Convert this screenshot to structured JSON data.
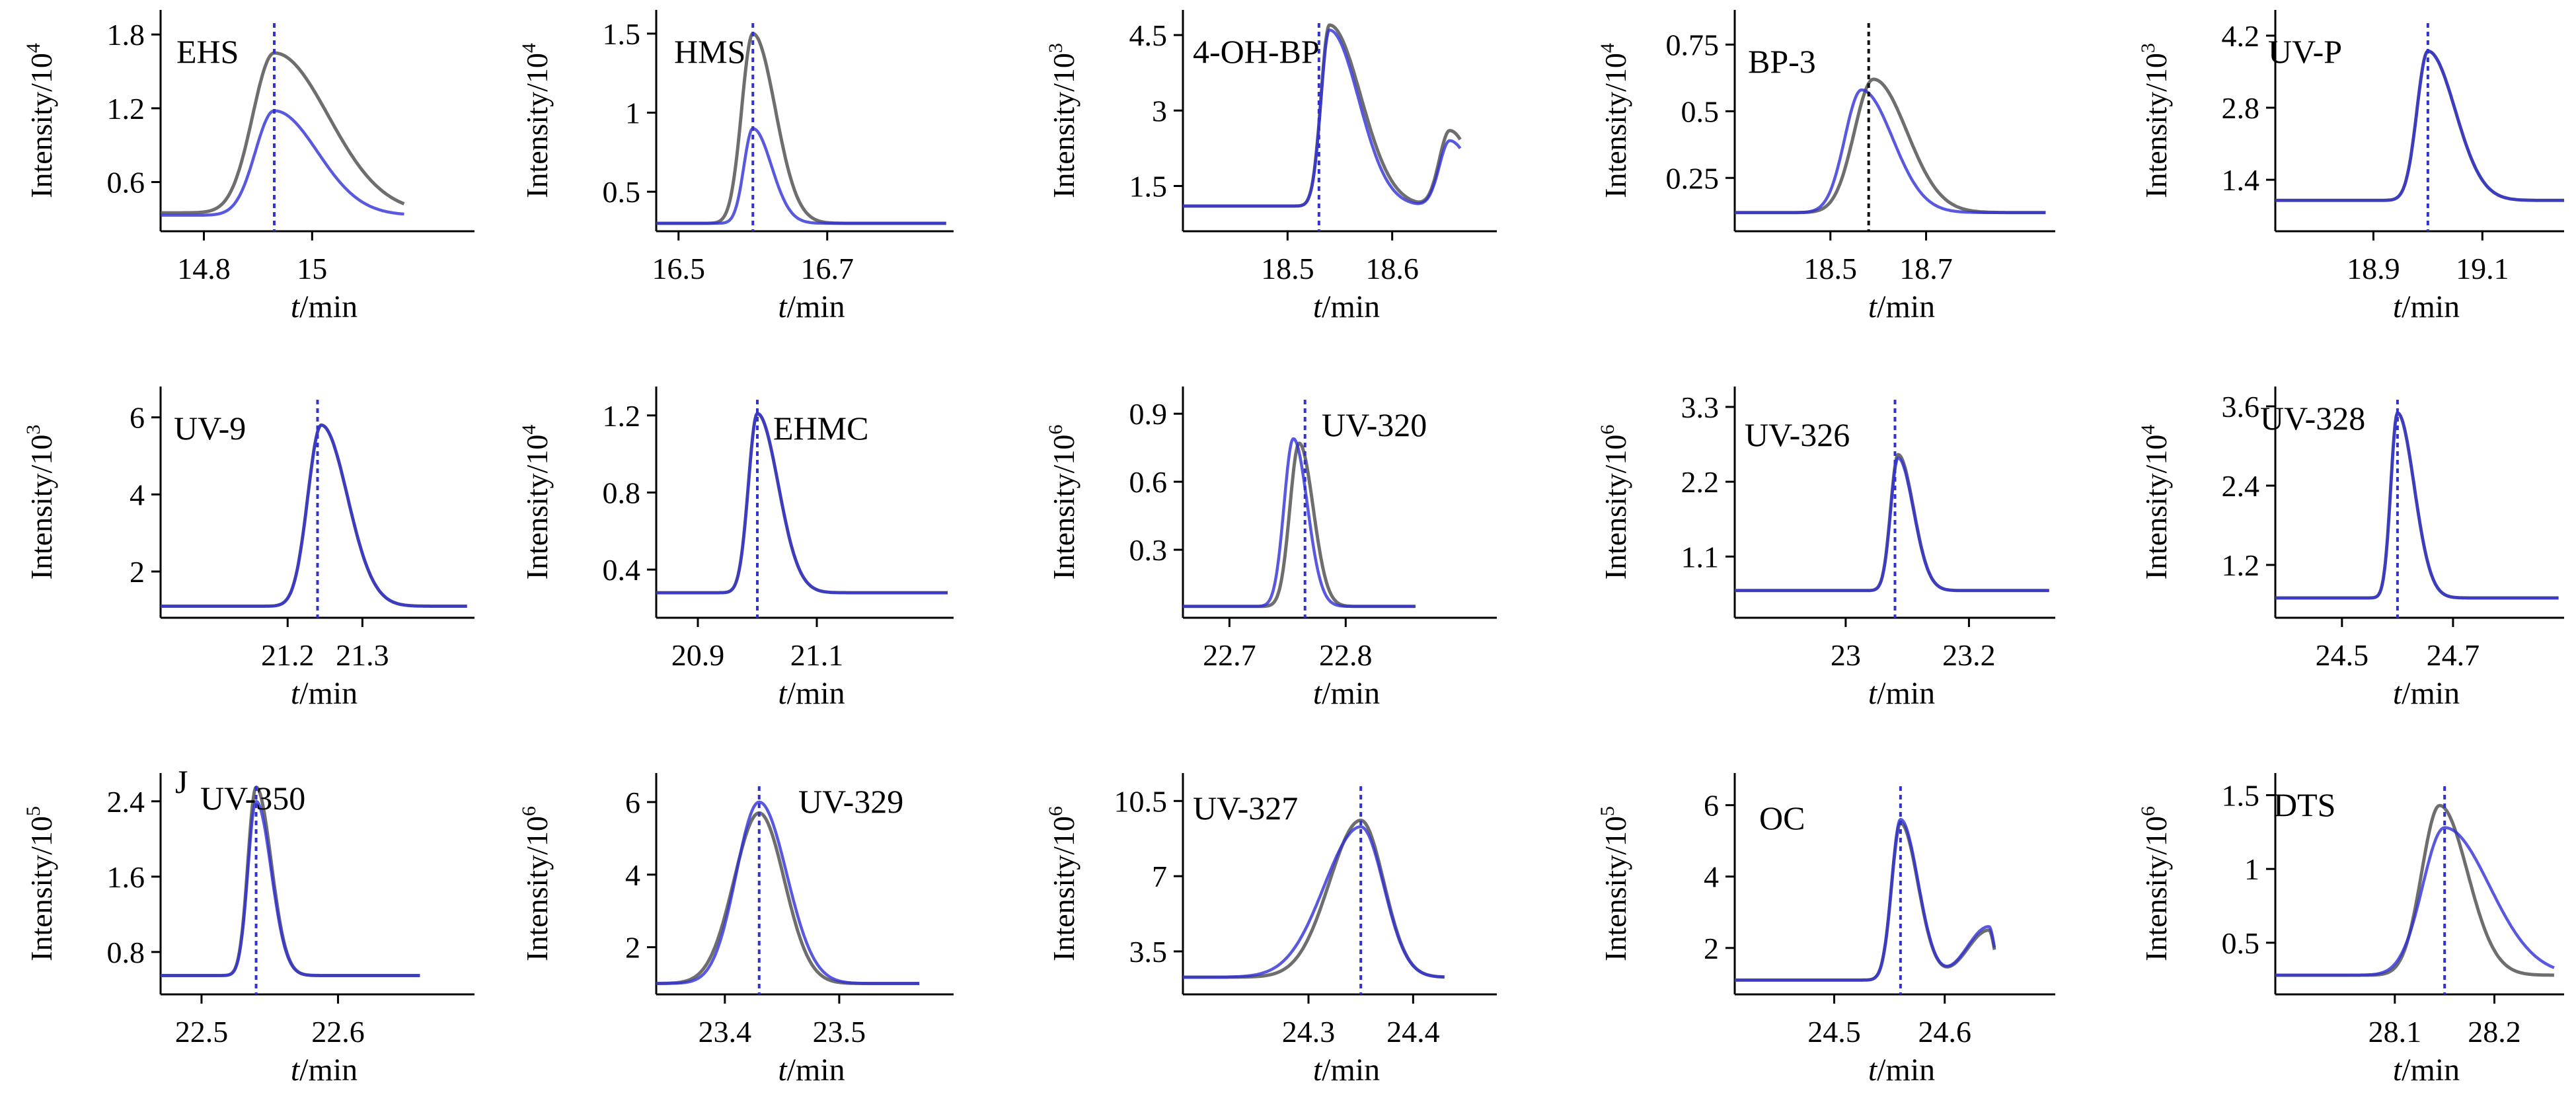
{
  "figure": {
    "xlabel_var": "t",
    "xlabel_unit": "/min",
    "ylabel_text": "Intensity/10"
  },
  "colors": {
    "black_trace": "#555555",
    "blue_trace": "#2f2fd8",
    "black_dash": "#111111",
    "blue_dash": "#3333cc",
    "axis": "#000000"
  },
  "chart_data": [
    {
      "type": "line",
      "title": "EHS",
      "exponent": "4",
      "yticks": [
        0.6,
        1.2,
        1.8
      ],
      "ylim": [
        0.2,
        2.0
      ],
      "xticks": [
        14.8,
        15
      ],
      "xlim": [
        14.72,
        15.3
      ],
      "rt": 14.93,
      "dash": "blue",
      "series": [
        {
          "name": "black",
          "base": 0.35,
          "peaks": [
            {
              "c": 14.93,
              "h": 1.3,
              "wl": 0.04,
              "wr": 0.1
            }
          ],
          "x_end": 15.17
        },
        {
          "name": "blue",
          "base": 0.33,
          "peaks": [
            {
              "c": 14.93,
              "h": 0.85,
              "wl": 0.035,
              "wr": 0.08
            }
          ],
          "x_end": 15.17
        }
      ]
    },
    {
      "type": "line",
      "title": "HMS",
      "exponent": "4",
      "yticks": [
        0.5,
        1.0,
        1.5
      ],
      "ylim": [
        0.25,
        1.65
      ],
      "xticks": [
        16.5,
        16.7
      ],
      "xlim": [
        16.47,
        16.87
      ],
      "rt": 16.6,
      "dash": "blue",
      "series": [
        {
          "name": "black",
          "base": 0.3,
          "peaks": [
            {
              "c": 16.6,
              "h": 1.2,
              "wl": 0.015,
              "wr": 0.03
            }
          ],
          "x_end": 16.86
        },
        {
          "name": "blue",
          "base": 0.3,
          "peaks": [
            {
              "c": 16.6,
              "h": 0.6,
              "wl": 0.012,
              "wr": 0.025
            }
          ],
          "x_end": 16.86
        }
      ]
    },
    {
      "type": "line",
      "title": "4-OH-BP",
      "exponent": "3",
      "yticks": [
        1.5,
        3.0,
        4.5
      ],
      "ylim": [
        0.6,
        5.0
      ],
      "xticks": [
        18.5,
        18.6
      ],
      "xlim": [
        18.4,
        18.7
      ],
      "rt": 18.53,
      "dash": "blue",
      "series": [
        {
          "name": "black",
          "base": 1.1,
          "peaks": [
            {
              "c": 18.54,
              "h": 3.6,
              "wl": 0.008,
              "wr": 0.03
            },
            {
              "c": 18.655,
              "h": 1.5,
              "wl": 0.01,
              "wr": 0.02
            }
          ],
          "x_end": 18.665
        },
        {
          "name": "blue",
          "base": 1.1,
          "peaks": [
            {
              "c": 18.54,
              "h": 3.5,
              "wl": 0.008,
              "wr": 0.028
            },
            {
              "c": 18.655,
              "h": 1.3,
              "wl": 0.01,
              "wr": 0.02
            }
          ],
          "x_end": 18.665
        }
      ]
    },
    {
      "type": "line",
      "title": "BP-3",
      "exponent": "4",
      "yticks": [
        0.25,
        0.5,
        0.75
      ],
      "ylim": [
        0.05,
        0.88
      ],
      "xticks": [
        18.5,
        18.7
      ],
      "xlim": [
        18.3,
        18.97
      ],
      "rt": 18.58,
      "dash": "black",
      "series": [
        {
          "name": "black",
          "base": 0.12,
          "peaks": [
            {
              "c": 18.59,
              "h": 0.5,
              "wl": 0.04,
              "wr": 0.07
            }
          ],
          "x_end": 18.95
        },
        {
          "name": "blue",
          "base": 0.12,
          "peaks": [
            {
              "c": 18.565,
              "h": 0.46,
              "wl": 0.035,
              "wr": 0.065
            }
          ],
          "x_end": 18.95
        }
      ]
    },
    {
      "type": "line",
      "title": "UV-P",
      "exponent": "3",
      "yticks": [
        1.4,
        2.8,
        4.2
      ],
      "ylim": [
        0.4,
        4.7
      ],
      "xticks": [
        18.9,
        19.1
      ],
      "xlim": [
        18.72,
        19.25
      ],
      "rt": 19.0,
      "dash": "blue",
      "series": [
        {
          "name": "black",
          "base": 1.0,
          "peaks": [
            {
              "c": 19.0,
              "h": 2.9,
              "wl": 0.02,
              "wr": 0.05
            }
          ],
          "x_end": 19.25
        },
        {
          "name": "blue",
          "base": 1.0,
          "peaks": [
            {
              "c": 19.0,
              "h": 2.9,
              "wl": 0.02,
              "wr": 0.05
            }
          ],
          "x_end": 19.25
        }
      ]
    },
    {
      "type": "line",
      "title": "UV-9",
      "exponent": "3",
      "yticks": [
        2,
        4,
        6
      ],
      "ylim": [
        0.8,
        6.8
      ],
      "xticks": [
        21.2,
        21.3
      ],
      "xlim": [
        21.03,
        21.45
      ],
      "rt": 21.24,
      "dash": "blue",
      "series": [
        {
          "name": "black",
          "base": 1.1,
          "peaks": [
            {
              "c": 21.245,
              "h": 4.7,
              "wl": 0.018,
              "wr": 0.035
            }
          ],
          "x_end": 21.44
        },
        {
          "name": "blue",
          "base": 1.1,
          "peaks": [
            {
              "c": 21.245,
              "h": 4.7,
              "wl": 0.018,
              "wr": 0.035
            }
          ],
          "x_end": 21.44
        }
      ]
    },
    {
      "type": "line",
      "title": "EHMC",
      "exponent": "4",
      "yticks": [
        0.4,
        0.8,
        1.2
      ],
      "ylim": [
        0.15,
        1.35
      ],
      "xticks": [
        20.9,
        21.1
      ],
      "xlim": [
        20.83,
        21.33
      ],
      "rt": 21.0,
      "dash": "blue",
      "series": [
        {
          "name": "black",
          "base": 0.28,
          "peaks": [
            {
              "c": 21.0,
              "h": 0.93,
              "wl": 0.015,
              "wr": 0.035
            }
          ],
          "x_end": 21.32
        },
        {
          "name": "blue",
          "base": 0.28,
          "peaks": [
            {
              "c": 21.0,
              "h": 0.93,
              "wl": 0.015,
              "wr": 0.035
            }
          ],
          "x_end": 21.32
        }
      ]
    },
    {
      "type": "line",
      "title": "UV-320",
      "exponent": "6",
      "yticks": [
        0.3,
        0.6,
        0.9
      ],
      "ylim": [
        0.0,
        1.02
      ],
      "xticks": [
        22.7,
        22.8
      ],
      "xlim": [
        22.66,
        22.93
      ],
      "rt": 22.765,
      "dash": "blue",
      "series": [
        {
          "name": "black",
          "base": 0.05,
          "peaks": [
            {
              "c": 22.76,
              "h": 0.72,
              "wl": 0.008,
              "wr": 0.012
            }
          ],
          "x_end": 22.86
        },
        {
          "name": "blue",
          "base": 0.05,
          "peaks": [
            {
              "c": 22.755,
              "h": 0.74,
              "wl": 0.008,
              "wr": 0.012
            }
          ],
          "x_end": 22.86
        }
      ]
    },
    {
      "type": "line",
      "title": "UV-326",
      "exponent": "6",
      "yticks": [
        1.1,
        2.2,
        3.3
      ],
      "ylim": [
        0.2,
        3.6
      ],
      "xticks": [
        23.0,
        23.2
      ],
      "xlim": [
        22.82,
        23.34
      ],
      "rt": 23.08,
      "dash": "blue",
      "series": [
        {
          "name": "black",
          "base": 0.6,
          "peaks": [
            {
              "c": 23.085,
              "h": 2.0,
              "wl": 0.012,
              "wr": 0.025
            }
          ],
          "x_end": 23.33
        },
        {
          "name": "blue",
          "base": 0.6,
          "peaks": [
            {
              "c": 23.085,
              "h": 1.95,
              "wl": 0.012,
              "wr": 0.025
            }
          ],
          "x_end": 23.33
        }
      ]
    },
    {
      "type": "line",
      "title": "UV-328",
      "exponent": "4",
      "yticks": [
        1.2,
        2.4,
        3.6
      ],
      "ylim": [
        0.4,
        3.9
      ],
      "xticks": [
        24.5,
        24.7
      ],
      "xlim": [
        24.38,
        24.9
      ],
      "rt": 24.6,
      "dash": "blue",
      "series": [
        {
          "name": "black",
          "base": 0.7,
          "peaks": [
            {
              "c": 24.6,
              "h": 2.8,
              "wl": 0.012,
              "wr": 0.03
            }
          ],
          "x_end": 24.89
        },
        {
          "name": "blue",
          "base": 0.7,
          "peaks": [
            {
              "c": 24.6,
              "h": 2.8,
              "wl": 0.012,
              "wr": 0.03
            }
          ],
          "x_end": 24.89
        }
      ]
    },
    {
      "type": "line",
      "title": "UV-350",
      "panel_letter": "J",
      "exponent": "5",
      "yticks": [
        0.8,
        1.6,
        2.4
      ],
      "ylim": [
        0.35,
        2.7
      ],
      "xticks": [
        22.5,
        22.6
      ],
      "xlim": [
        22.47,
        22.7
      ],
      "rt": 22.54,
      "dash": "blue",
      "series": [
        {
          "name": "black",
          "base": 0.55,
          "peaks": [
            {
              "c": 22.54,
              "h": 2.0,
              "wl": 0.006,
              "wr": 0.011
            }
          ],
          "x_end": 22.66
        },
        {
          "name": "blue",
          "base": 0.55,
          "peaks": [
            {
              "c": 22.54,
              "h": 1.85,
              "wl": 0.006,
              "wr": 0.011
            }
          ],
          "x_end": 22.66
        }
      ]
    },
    {
      "type": "line",
      "title": "UV-329",
      "exponent": "6",
      "yticks": [
        2,
        4,
        6
      ],
      "ylim": [
        0.7,
        6.8
      ],
      "xticks": [
        23.4,
        23.5
      ],
      "xlim": [
        23.34,
        23.6
      ],
      "rt": 23.43,
      "dash": "blue",
      "series": [
        {
          "name": "black",
          "base": 1.0,
          "peaks": [
            {
              "c": 23.43,
              "h": 4.7,
              "wl": 0.022,
              "wr": 0.022
            }
          ],
          "x_end": 23.57
        },
        {
          "name": "blue",
          "base": 1.0,
          "peaks": [
            {
              "c": 23.43,
              "h": 5.0,
              "wl": 0.02,
              "wr": 0.024
            }
          ],
          "x_end": 23.57
        }
      ]
    },
    {
      "type": "line",
      "title": "UV-327",
      "exponent": "6",
      "yticks": [
        3.5,
        7.0,
        10.5
      ],
      "ylim": [
        1.5,
        11.8
      ],
      "xticks": [
        24.3,
        24.4
      ],
      "xlim": [
        24.18,
        24.48
      ],
      "rt": 24.35,
      "dash": "blue",
      "series": [
        {
          "name": "black",
          "base": 2.3,
          "peaks": [
            {
              "c": 24.35,
              "h": 7.3,
              "wl": 0.03,
              "wr": 0.022
            }
          ],
          "x_end": 24.43
        },
        {
          "name": "blue",
          "base": 2.3,
          "peaks": [
            {
              "c": 24.35,
              "h": 7.0,
              "wl": 0.035,
              "wr": 0.022
            }
          ],
          "x_end": 24.43
        }
      ]
    },
    {
      "type": "line",
      "title": "OC",
      "exponent": "5",
      "yticks": [
        2,
        4,
        6
      ],
      "ylim": [
        0.7,
        6.9
      ],
      "xticks": [
        24.5,
        24.6
      ],
      "xlim": [
        24.41,
        24.7
      ],
      "rt": 24.56,
      "dash": "blue",
      "series": [
        {
          "name": "black",
          "base": 1.1,
          "peaks": [
            {
              "c": 24.56,
              "h": 4.4,
              "wl": 0.008,
              "wr": 0.016
            },
            {
              "c": 24.64,
              "h": 1.4,
              "wl": 0.02,
              "wr": 0.005
            }
          ],
          "x_end": 24.645
        },
        {
          "name": "blue",
          "base": 1.1,
          "peaks": [
            {
              "c": 24.56,
              "h": 4.5,
              "wl": 0.008,
              "wr": 0.016
            },
            {
              "c": 24.64,
              "h": 1.5,
              "wl": 0.02,
              "wr": 0.005
            }
          ],
          "x_end": 24.645
        }
      ]
    },
    {
      "type": "line",
      "title": "DTS",
      "exponent": "6",
      "yticks": [
        0.5,
        1.0,
        1.5
      ],
      "ylim": [
        0.15,
        1.65
      ],
      "xticks": [
        28.1,
        28.2
      ],
      "xlim": [
        27.98,
        28.27
      ],
      "rt": 28.15,
      "dash": "blue",
      "series": [
        {
          "name": "black",
          "base": 0.28,
          "peaks": [
            {
              "c": 28.145,
              "h": 1.15,
              "wl": 0.018,
              "wr": 0.028
            }
          ],
          "x_end": 28.26
        },
        {
          "name": "blue",
          "base": 0.28,
          "peaks": [
            {
              "c": 28.15,
              "h": 1.0,
              "wl": 0.022,
              "wr": 0.045
            }
          ],
          "x_end": 28.26
        }
      ]
    }
  ]
}
